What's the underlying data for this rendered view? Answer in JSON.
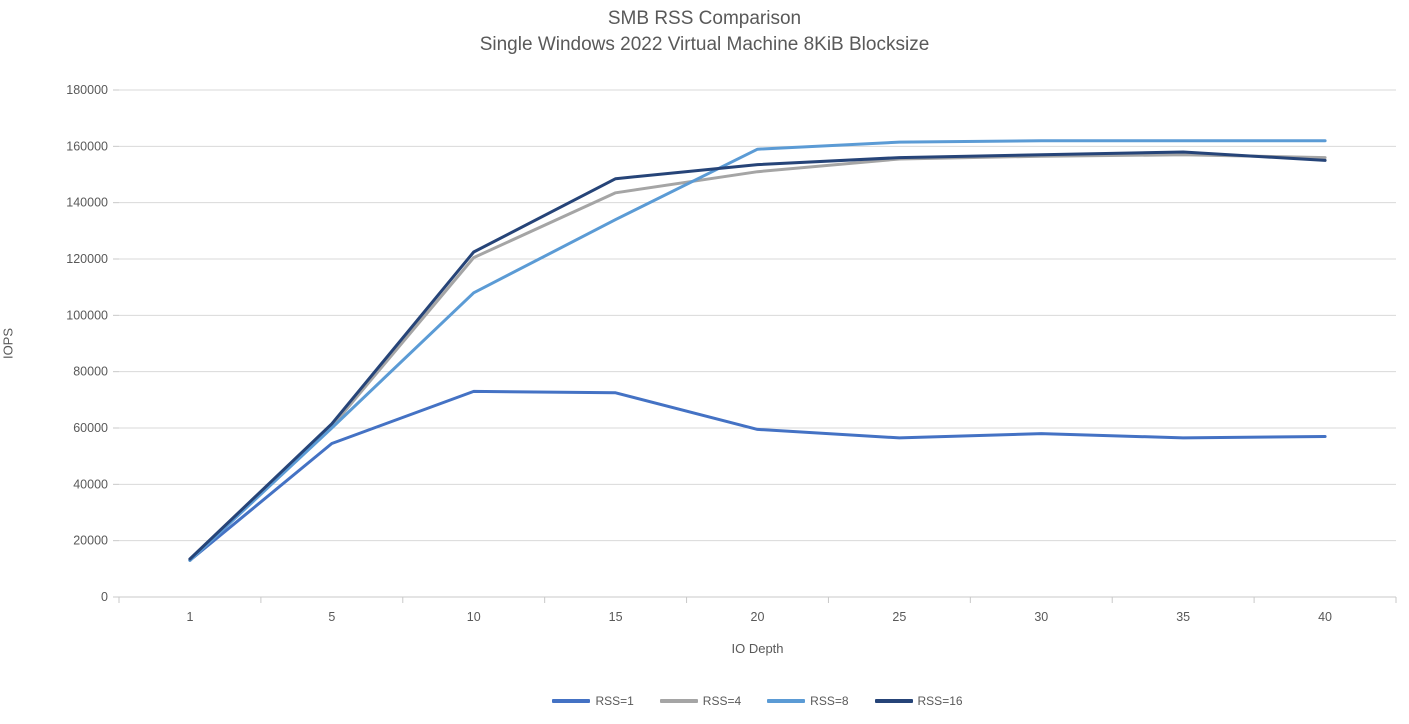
{
  "chart_data": {
    "type": "line",
    "title": "SMB RSS Comparison",
    "subtitle": "Single Windows 2022 Virtual Machine 8KiB Blocksize",
    "xlabel": "IO Depth",
    "ylabel": "IOPS",
    "x_categories": [
      "1",
      "5",
      "10",
      "15",
      "20",
      "25",
      "30",
      "35",
      "40"
    ],
    "ylim": [
      0,
      180000
    ],
    "y_ticks": [
      0,
      20000,
      40000,
      60000,
      80000,
      100000,
      120000,
      140000,
      160000,
      180000
    ],
    "grid": true,
    "legend_position": "bottom",
    "series": [
      {
        "name": "RSS=1",
        "color": "#4472C4",
        "values": [
          13000,
          54500,
          73000,
          72500,
          59500,
          56500,
          58000,
          56500,
          57000
        ]
      },
      {
        "name": "RSS=4",
        "color": "#A5A5A5",
        "values": [
          13000,
          60500,
          120500,
          143500,
          151000,
          155500,
          156500,
          157000,
          156000
        ]
      },
      {
        "name": "RSS=8",
        "color": "#5B9BD5",
        "values": [
          13000,
          60000,
          108000,
          134000,
          159000,
          161500,
          162000,
          162000,
          162000
        ]
      },
      {
        "name": "RSS=16",
        "color": "#264478",
        "values": [
          13500,
          61500,
          122500,
          148500,
          153500,
          156000,
          157000,
          158000,
          155000
        ]
      }
    ],
    "style": {
      "text_color": "#595959",
      "gridline_color": "#D9D9D9",
      "axis_color": "#C8C8C8"
    }
  }
}
